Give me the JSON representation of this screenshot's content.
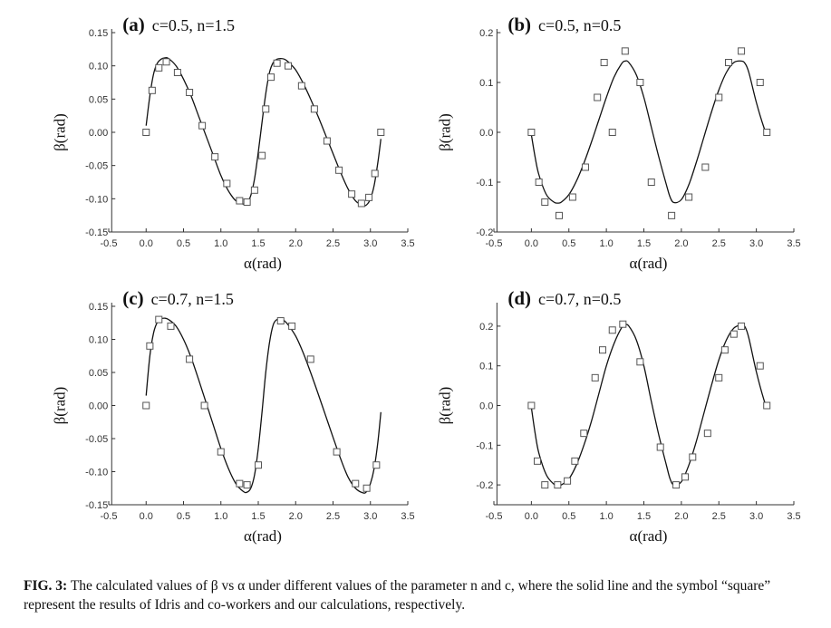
{
  "chart_data": [
    {
      "type": "line",
      "panel_label": "(a)",
      "title": "c=0.5, n=1.5",
      "xlabel": "α(rad)",
      "ylabel": "β(rad)",
      "xlim": [
        -0.5,
        3.5
      ],
      "ylim": [
        -0.15,
        0.15
      ],
      "xticks": [
        "-0.5",
        "0.0",
        "0.5",
        "1.0",
        "1.5",
        "2.0",
        "2.5",
        "3.0",
        "3.5"
      ],
      "yticks": [
        "-0.15",
        "-0.10",
        "-0.05",
        "0.00",
        "0.05",
        "0.10",
        "0.15"
      ],
      "series": [
        {
          "style": "solid-line",
          "x": [
            0.0,
            0.05,
            0.1,
            0.15,
            0.2,
            0.25,
            0.3,
            0.4,
            0.5,
            0.6,
            0.7,
            0.8,
            0.9,
            1.0,
            1.1,
            1.2,
            1.3,
            1.35,
            1.4,
            1.45,
            1.5,
            1.55,
            1.6,
            1.65,
            1.7,
            1.75,
            1.8,
            1.85,
            1.9,
            2.0,
            2.1,
            2.2,
            2.3,
            2.4,
            2.5,
            2.6,
            2.7,
            2.8,
            2.9,
            2.95,
            3.0,
            3.05,
            3.1,
            3.14
          ],
          "y": [
            0.01,
            0.055,
            0.088,
            0.104,
            0.11,
            0.112,
            0.111,
            0.1,
            0.08,
            0.055,
            0.025,
            -0.005,
            -0.035,
            -0.065,
            -0.088,
            -0.103,
            -0.108,
            -0.106,
            -0.095,
            -0.07,
            -0.03,
            0.015,
            0.058,
            0.09,
            0.105,
            0.11,
            0.111,
            0.11,
            0.106,
            0.094,
            0.074,
            0.05,
            0.024,
            -0.004,
            -0.032,
            -0.06,
            -0.085,
            -0.103,
            -0.11,
            -0.109,
            -0.1,
            -0.08,
            -0.045,
            -0.01
          ]
        },
        {
          "style": "square-markers",
          "x": [
            0.0,
            0.08,
            0.17,
            0.27,
            0.42,
            0.58,
            0.75,
            0.92,
            1.08,
            1.25,
            1.35,
            1.45,
            1.55,
            1.6,
            1.67,
            1.75,
            1.9,
            2.08,
            2.25,
            2.42,
            2.58,
            2.75,
            2.88,
            2.98,
            3.06,
            3.14
          ],
          "y": [
            0.0,
            0.063,
            0.097,
            0.106,
            0.09,
            0.06,
            0.01,
            -0.037,
            -0.077,
            -0.103,
            -0.105,
            -0.087,
            -0.035,
            0.035,
            0.083,
            0.104,
            0.1,
            0.07,
            0.035,
            -0.013,
            -0.057,
            -0.093,
            -0.107,
            -0.098,
            -0.062,
            0.0
          ]
        }
      ]
    },
    {
      "type": "line",
      "panel_label": "(b)",
      "title": "c=0.5, n=0.5",
      "xlabel": "α(rad)",
      "ylabel": "β(rad)",
      "xlim": [
        -0.5,
        3.5
      ],
      "ylim": [
        -0.2,
        0.2
      ],
      "xticks": [
        "-0.5",
        "0.0",
        "0.5",
        "1.0",
        "1.5",
        "2.0",
        "2.5",
        "3.0",
        "3.5"
      ],
      "yticks": [
        "-0.2",
        "-0.1",
        "0.0",
        "0.1",
        "0.2"
      ],
      "series": [
        {
          "style": "solid-line",
          "x": [
            0.0,
            0.05,
            0.1,
            0.2,
            0.3,
            0.35,
            0.4,
            0.5,
            0.6,
            0.7,
            0.8,
            0.9,
            1.0,
            1.1,
            1.2,
            1.25,
            1.3,
            1.4,
            1.5,
            1.6,
            1.7,
            1.8,
            1.85,
            1.9,
            2.0,
            2.1,
            2.2,
            2.3,
            2.4,
            2.5,
            2.6,
            2.7,
            2.8,
            2.85,
            2.9,
            3.0,
            3.1,
            3.14
          ],
          "y": [
            -0.005,
            -0.05,
            -0.085,
            -0.125,
            -0.14,
            -0.142,
            -0.14,
            -0.125,
            -0.098,
            -0.062,
            -0.02,
            0.025,
            0.07,
            0.11,
            0.137,
            0.143,
            0.14,
            0.115,
            0.07,
            0.01,
            -0.05,
            -0.105,
            -0.13,
            -0.141,
            -0.135,
            -0.105,
            -0.06,
            -0.01,
            0.04,
            0.085,
            0.12,
            0.14,
            0.143,
            0.138,
            0.12,
            0.06,
            0.01,
            -0.002
          ]
        },
        {
          "style": "square-markers",
          "x": [
            0.0,
            0.1,
            0.18,
            0.37,
            0.55,
            0.72,
            0.88,
            0.97,
            1.08,
            1.25,
            1.45,
            1.6,
            1.87,
            2.1,
            2.32,
            2.5,
            2.63,
            2.8,
            3.05,
            3.14
          ],
          "y": [
            0.0,
            -0.1,
            -0.14,
            -0.167,
            -0.13,
            -0.07,
            0.07,
            0.14,
            0.0,
            0.163,
            0.1,
            -0.1,
            -0.167,
            -0.13,
            -0.07,
            0.07,
            0.14,
            0.163,
            0.1,
            0.0
          ]
        }
      ]
    },
    {
      "type": "line",
      "panel_label": "(c)",
      "title": "c=0.7, n=1.5",
      "xlabel": "α(rad)",
      "ylabel": "β(rad)",
      "xlim": [
        -0.5,
        3.5
      ],
      "ylim": [
        -0.15,
        0.15
      ],
      "xticks": [
        "-0.5",
        "0.0",
        "0.5",
        "1.0",
        "1.5",
        "2.0",
        "2.5",
        "3.0",
        "3.5"
      ],
      "yticks": [
        "-0.15",
        "-0.10",
        "-0.05",
        "0.00",
        "0.05",
        "0.10",
        "0.15"
      ],
      "series": [
        {
          "style": "solid-line",
          "x": [
            0.0,
            0.05,
            0.1,
            0.15,
            0.2,
            0.25,
            0.3,
            0.4,
            0.5,
            0.6,
            0.7,
            0.8,
            0.9,
            1.0,
            1.1,
            1.2,
            1.3,
            1.35,
            1.4,
            1.45,
            1.5,
            1.55,
            1.6,
            1.65,
            1.7,
            1.75,
            1.8,
            1.85,
            1.9,
            2.0,
            2.1,
            2.2,
            2.3,
            2.4,
            2.5,
            2.6,
            2.7,
            2.8,
            2.9,
            2.95,
            3.0,
            3.05,
            3.1,
            3.14
          ],
          "y": [
            0.015,
            0.075,
            0.11,
            0.126,
            0.131,
            0.132,
            0.13,
            0.12,
            0.1,
            0.073,
            0.04,
            0.005,
            -0.03,
            -0.065,
            -0.095,
            -0.118,
            -0.13,
            -0.131,
            -0.125,
            -0.105,
            -0.065,
            -0.01,
            0.05,
            0.095,
            0.122,
            0.13,
            0.131,
            0.128,
            0.122,
            0.105,
            0.08,
            0.05,
            0.018,
            -0.015,
            -0.048,
            -0.08,
            -0.108,
            -0.125,
            -0.132,
            -0.13,
            -0.118,
            -0.095,
            -0.055,
            -0.01
          ]
        },
        {
          "style": "square-markers",
          "x": [
            0.0,
            0.05,
            0.17,
            0.33,
            0.58,
            0.78,
            1.0,
            1.25,
            1.35,
            1.5,
            1.8,
            1.95,
            2.2,
            2.55,
            2.8,
            2.95,
            3.08
          ],
          "y": [
            0.0,
            0.09,
            0.13,
            0.12,
            0.07,
            0.0,
            -0.07,
            -0.118,
            -0.12,
            -0.09,
            0.128,
            0.12,
            0.07,
            -0.07,
            -0.118,
            -0.125,
            -0.09
          ]
        }
      ]
    },
    {
      "type": "line",
      "panel_label": "(d)",
      "title": "c=0.7, n=0.5",
      "xlabel": "α(rad)",
      "ylabel": "β(rad)",
      "xlim": [
        -0.5,
        3.5
      ],
      "ylim": [
        -0.25,
        0.25
      ],
      "xticks": [
        "-0.5",
        "0.0",
        "0.5",
        "1.0",
        "1.5",
        "2.0",
        "2.5",
        "3.0",
        "3.5"
      ],
      "yticks": [
        "-0.2",
        "-0.1",
        "0.0",
        "0.1",
        "0.2"
      ],
      "series": [
        {
          "style": "solid-line",
          "x": [
            0.0,
            0.05,
            0.1,
            0.2,
            0.3,
            0.35,
            0.4,
            0.5,
            0.6,
            0.7,
            0.8,
            0.9,
            1.0,
            1.1,
            1.2,
            1.25,
            1.3,
            1.4,
            1.5,
            1.6,
            1.7,
            1.8,
            1.85,
            1.9,
            2.0,
            2.1,
            2.2,
            2.3,
            2.4,
            2.5,
            2.6,
            2.7,
            2.8,
            2.85,
            2.9,
            3.0,
            3.1,
            3.14
          ],
          "y": [
            -0.005,
            -0.07,
            -0.12,
            -0.175,
            -0.198,
            -0.202,
            -0.2,
            -0.185,
            -0.15,
            -0.1,
            -0.04,
            0.03,
            0.1,
            0.155,
            0.195,
            0.203,
            0.2,
            0.165,
            0.1,
            0.01,
            -0.075,
            -0.15,
            -0.185,
            -0.2,
            -0.192,
            -0.15,
            -0.09,
            -0.02,
            0.05,
            0.115,
            0.165,
            0.195,
            0.203,
            0.198,
            0.17,
            0.085,
            0.015,
            -0.002
          ]
        },
        {
          "style": "square-markers",
          "x": [
            0.0,
            0.08,
            0.18,
            0.35,
            0.48,
            0.58,
            0.7,
            0.85,
            0.95,
            1.08,
            1.22,
            1.45,
            1.72,
            1.93,
            2.05,
            2.15,
            2.35,
            2.5,
            2.58,
            2.7,
            2.8,
            3.05,
            3.14
          ],
          "y": [
            0.0,
            -0.14,
            -0.2,
            -0.2,
            -0.19,
            -0.14,
            -0.07,
            0.07,
            0.14,
            0.19,
            0.205,
            0.11,
            -0.105,
            -0.2,
            -0.18,
            -0.13,
            -0.07,
            0.07,
            0.14,
            0.18,
            0.2,
            0.1,
            0.0
          ]
        }
      ]
    }
  ],
  "caption": {
    "label": "FIG. 3:",
    "text": " The calculated values of β vs α under different values of the parameter n and c, where the solid line and the symbol “square” represent the results of Idris and co-workers and our calculations, respectively."
  }
}
